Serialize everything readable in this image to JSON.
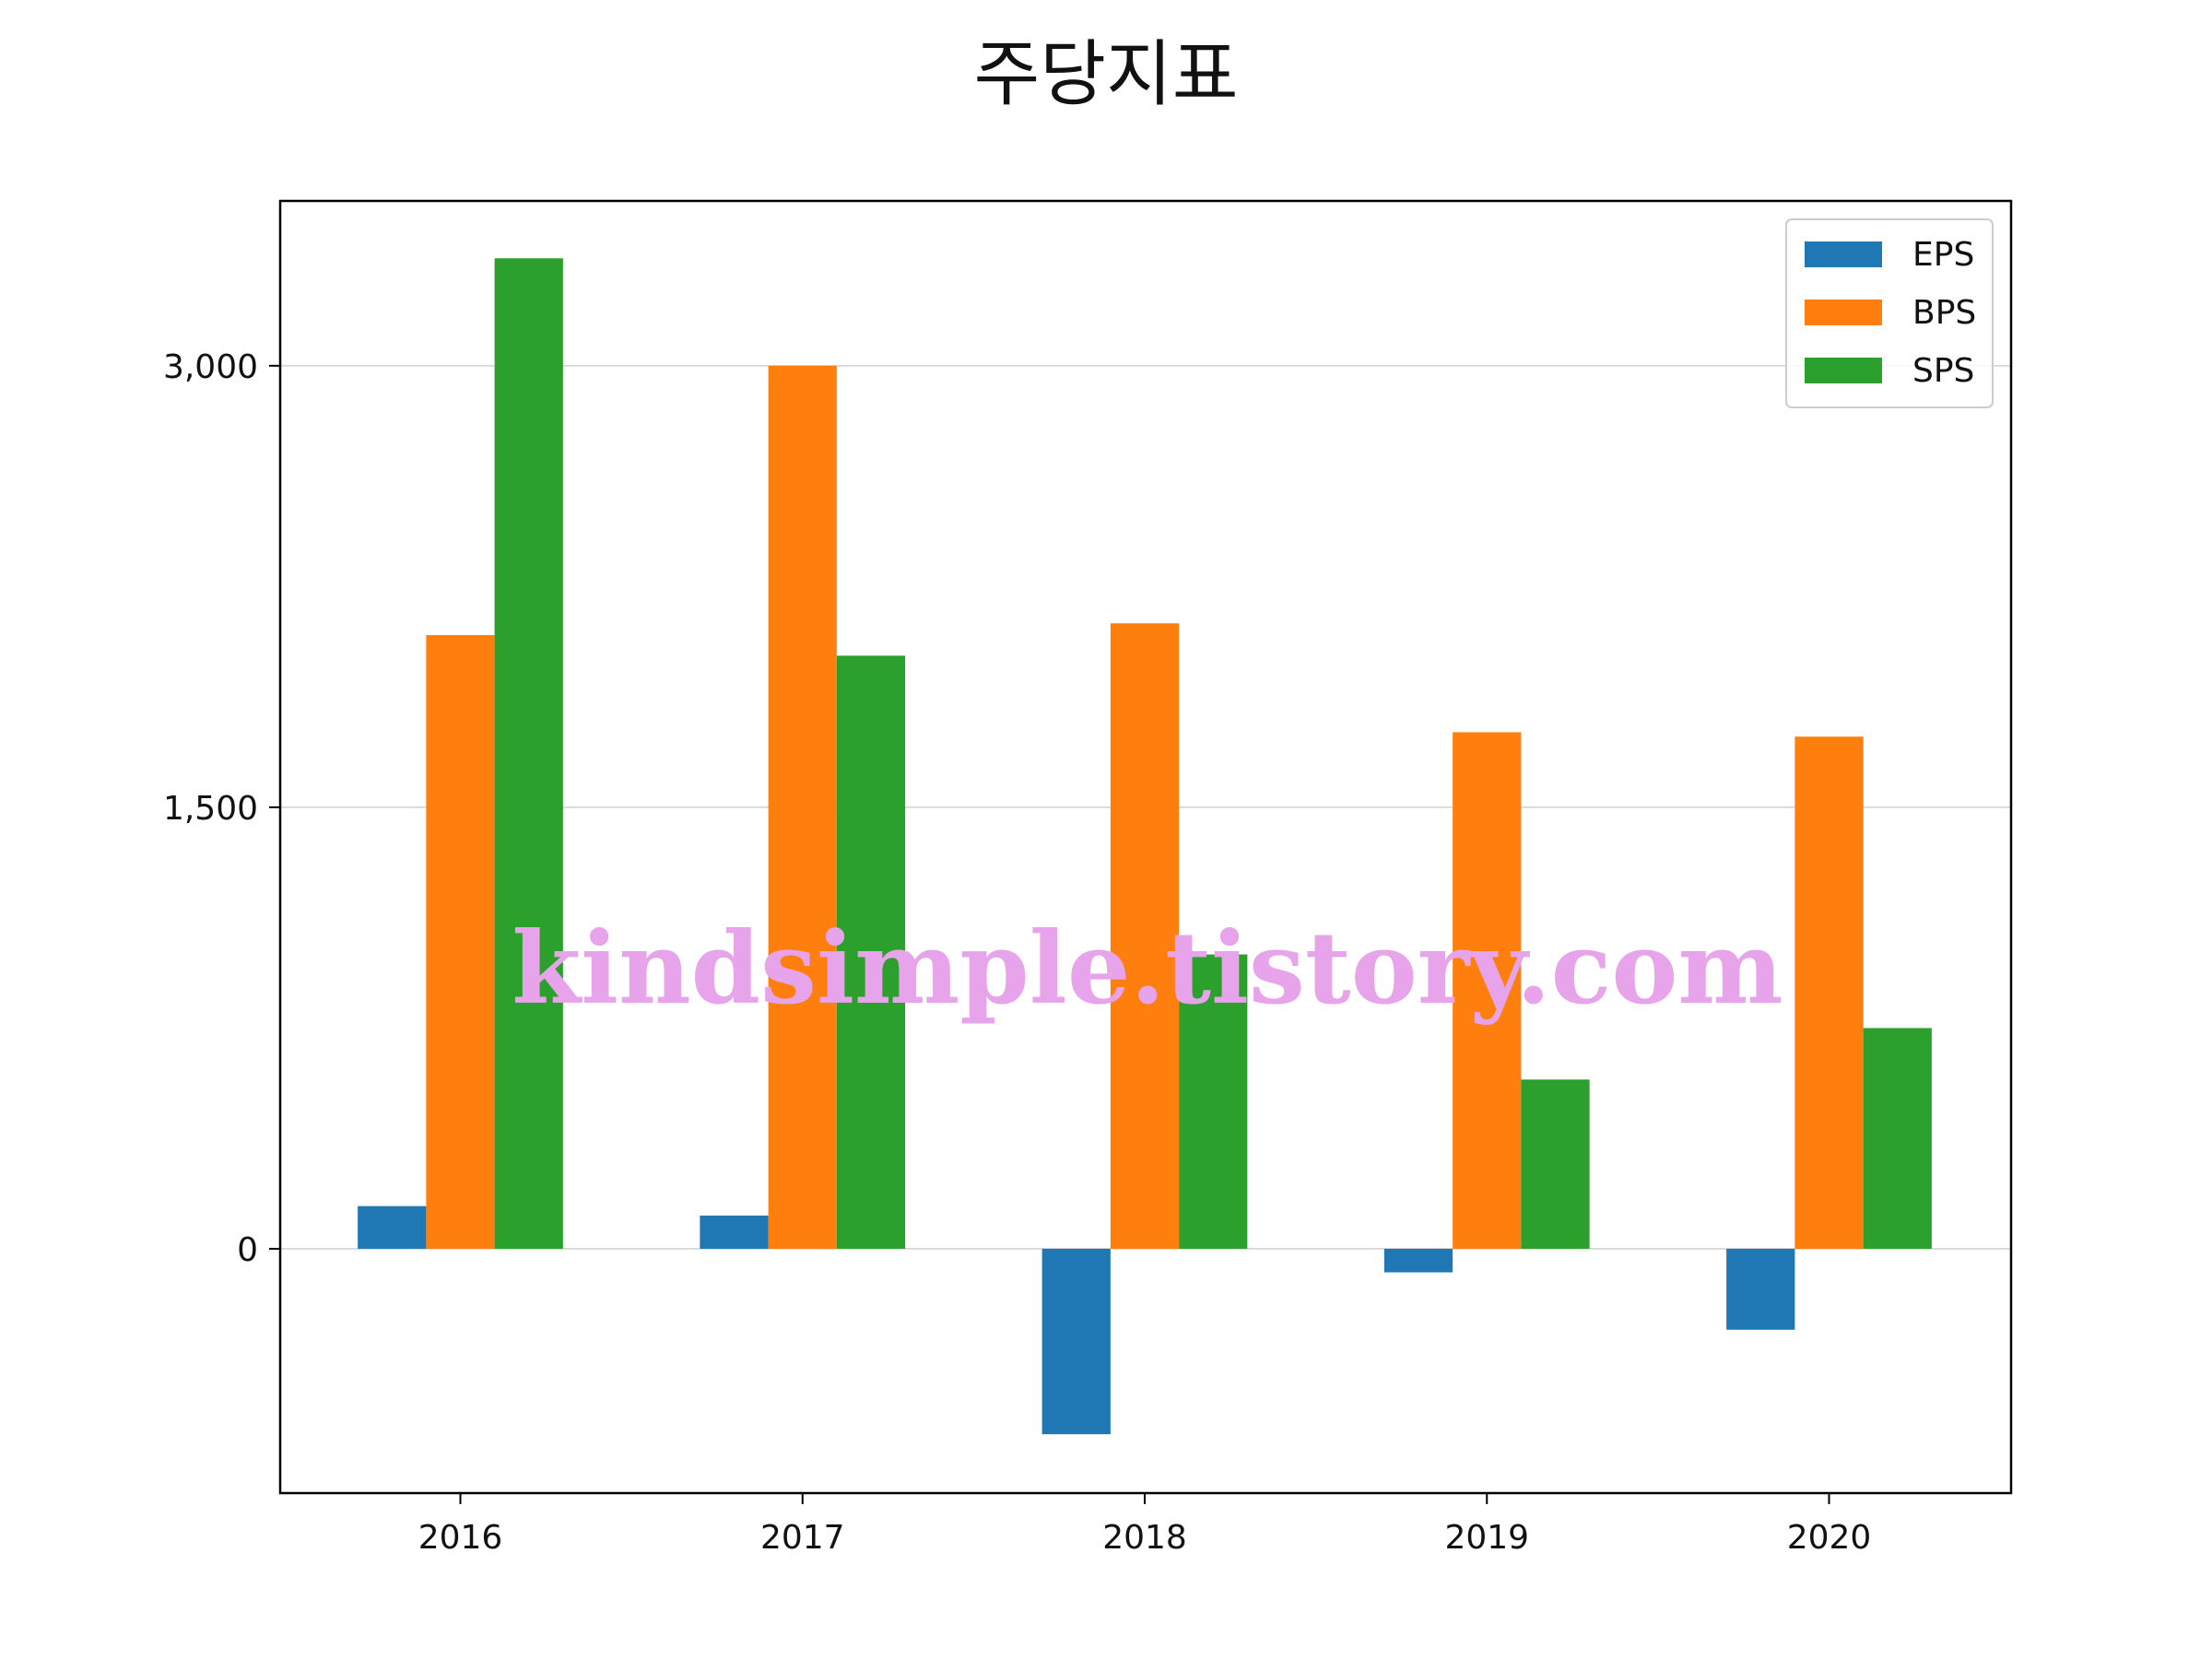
{
  "colors": {
    "EPS": "#1f77b4",
    "BPS": "#ff7f0e",
    "SPS": "#2ca02c",
    "watermark": "#e8a4ea",
    "grid": "#d0d0d0"
  },
  "chart_data": {
    "type": "bar",
    "title": "주당지표",
    "xlabel": "",
    "ylabel": "",
    "categories": [
      "2016",
      "2017",
      "2018",
      "2019",
      "2020"
    ],
    "series": [
      {
        "name": "EPS",
        "values": [
          145,
          113,
          -630,
          -80,
          -275
        ]
      },
      {
        "name": "BPS",
        "values": [
          2085,
          3000,
          2125,
          1755,
          1740
        ]
      },
      {
        "name": "SPS",
        "values": [
          3365,
          2015,
          1000,
          575,
          750
        ]
      }
    ],
    "ylim": [
      -830,
      3560
    ],
    "yticks": [
      0,
      1500,
      3000
    ],
    "ytick_labels": [
      "0",
      "1,500",
      "3,000"
    ],
    "grid": "y",
    "legend": "top-right"
  },
  "watermark": "kindsimple.tistory.com"
}
